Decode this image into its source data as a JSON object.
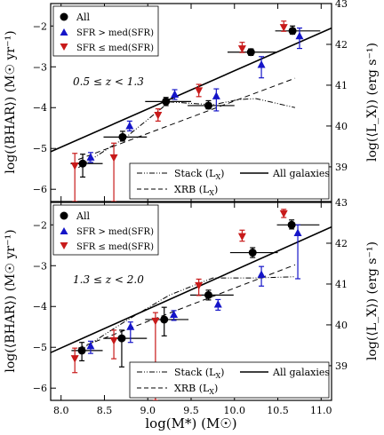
{
  "chart_data": [
    {
      "type": "scatter",
      "panel_label": "0.5 ≤ z < 1.3",
      "ylabel_left": "log(⟨BHAR⟩) (M☉ yr⁻¹)",
      "ylabel_right": "log(⟨L_X⟩) (erg s⁻¹)",
      "xlim": [
        7.88,
        11.12
      ],
      "ylim": [
        -6.3,
        -1.45
      ],
      "ylim_right": [
        38.15,
        43.0
      ],
      "yticks": [
        -6,
        -5,
        -4,
        -3,
        -2
      ],
      "yticks_right": [
        39,
        40,
        41,
        42,
        43
      ],
      "series": [
        {
          "name": "All",
          "color": "#000000",
          "marker": "circle",
          "points": [
            {
              "x": 8.26,
              "y": -5.37,
              "xerr": [
                0.15,
                0.22
              ],
              "yerr": [
                0.33,
                0.23
              ]
            },
            {
              "x": 8.72,
              "y": -4.72,
              "xerr": [
                0.23,
                0.27
              ],
              "yerr": [
                0.1,
                0.14
              ]
            },
            {
              "x": 9.22,
              "y": -3.85,
              "xerr": [
                0.25,
                0.28
              ],
              "yerr": [
                0.1,
                0.1
              ]
            },
            {
              "x": 9.71,
              "y": -3.95,
              "xerr": [
                0.25,
                0.29
              ],
              "yerr": [
                0.08,
                0.12
              ]
            },
            {
              "x": 10.2,
              "y": -2.64,
              "xerr": [
                0.28,
                0.28
              ],
              "yerr": [
                0.08,
                0.08
              ]
            },
            {
              "x": 10.68,
              "y": -2.12,
              "xerr": [
                0.21,
                0.31
              ],
              "yerr": [
                0.08,
                0.12
              ]
            }
          ]
        },
        {
          "name": "SFR > med(SFR)",
          "color": "#1515c8",
          "marker": "triangle-up",
          "points": [
            {
              "x": 8.31,
              "y": -5.22,
              "yerr": [
                0.12,
                0.12
              ]
            },
            {
              "x": 8.76,
              "y": -4.45,
              "yerr": [
                0.12,
                0.12
              ]
            },
            {
              "x": 9.28,
              "y": -3.68,
              "yerr": [
                0.12,
                0.12
              ]
            },
            {
              "x": 9.76,
              "y": -3.72,
              "yerr": [
                0.36,
                0.18
              ]
            },
            {
              "x": 10.28,
              "y": -2.95,
              "yerr": [
                0.32,
                0.2
              ]
            },
            {
              "x": 10.72,
              "y": -2.25,
              "yerr": [
                0.3,
                0.2
              ]
            }
          ]
        },
        {
          "name": "SFR ≤ med(SFR)",
          "color": "#c81a1a",
          "marker": "triangle-down",
          "points": [
            {
              "x": 8.21,
              "y": -5.42,
              "yerr": [
                0.88,
                0.3
              ]
            },
            {
              "x": 8.66,
              "y": -5.22,
              "yerr": [
                1.08,
                0.35
              ]
            },
            {
              "x": 9.17,
              "y": -4.18,
              "yerr": [
                0.15,
                0.15
              ]
            },
            {
              "x": 9.64,
              "y": -3.58,
              "yerr": [
                0.15,
                0.15
              ]
            },
            {
              "x": 10.14,
              "y": -2.55,
              "yerr": [
                0.1,
                0.15
              ]
            },
            {
              "x": 10.62,
              "y": -2.03,
              "yerr": [
                0.1,
                0.15
              ]
            }
          ]
        }
      ],
      "lines": [
        {
          "name": "Stack (L_X)",
          "style": "dash-dot",
          "x": [
            8.2,
            8.75,
            9.25,
            9.75,
            10.05,
            10.25,
            10.7
          ],
          "y": [
            -5.47,
            -4.72,
            -3.86,
            -3.93,
            -3.8,
            -3.78,
            -4.0
          ]
        },
        {
          "name": "XRB (L_X)",
          "style": "dashed",
          "x": [
            8.2,
            10.7
          ],
          "y": [
            -5.27,
            -3.28
          ]
        },
        {
          "name": "All galaxies",
          "style": "solid",
          "x": [
            7.88,
            11.12
          ],
          "y": [
            -5.08,
            -2.05
          ]
        }
      ]
    },
    {
      "type": "scatter",
      "panel_label": "1.3 ≤ z < 2.0",
      "ylabel_left": "log(⟨BHAR⟩) (M☉ yr⁻¹)",
      "ylabel_right": "log(⟨L_X⟩) (erg s⁻¹)",
      "xlabel": "log(M*) (M☉)",
      "xlim": [
        7.88,
        11.12
      ],
      "ylim": [
        -6.3,
        -1.45
      ],
      "ylim_right": [
        38.15,
        43.0
      ],
      "xticks": [
        8.0,
        8.5,
        9.0,
        9.5,
        10.0,
        10.5,
        11.0
      ],
      "yticks": [
        -6,
        -5,
        -4,
        -3,
        -2
      ],
      "yticks_right": [
        39,
        40,
        41,
        42,
        43
      ],
      "series": [
        {
          "name": "All",
          "color": "#000000",
          "marker": "circle",
          "points": [
            {
              "x": 8.25,
              "y": -5.08,
              "xerr": [
                0.13,
                0.23
              ],
              "yerr": [
                0.25,
                0.2
              ]
            },
            {
              "x": 8.71,
              "y": -4.78,
              "xerr": [
                0.22,
                0.28
              ],
              "yerr": [
                0.7,
                0.2
              ]
            },
            {
              "x": 9.2,
              "y": -4.32,
              "xerr": [
                0.23,
                0.27
              ],
              "yerr": [
                0.4,
                0.3
              ]
            },
            {
              "x": 9.71,
              "y": -3.72,
              "xerr": [
                0.22,
                0.28
              ],
              "yerr": [
                0.12,
                0.12
              ]
            },
            {
              "x": 10.22,
              "y": -2.68,
              "xerr": [
                0.27,
                0.28
              ],
              "yerr": [
                0.12,
                0.12
              ]
            },
            {
              "x": 10.67,
              "y": -2.0,
              "xerr": [
                0.18,
                0.31
              ],
              "yerr": [
                0.1,
                0.12
              ]
            }
          ]
        },
        {
          "name": "SFR > med(SFR)",
          "color": "#1515c8",
          "marker": "triangle-up",
          "points": [
            {
              "x": 8.31,
              "y": -4.97,
              "yerr": [
                0.18,
                0.12
              ]
            },
            {
              "x": 8.77,
              "y": -4.5,
              "yerr": [
                0.38,
                0.12
              ]
            },
            {
              "x": 9.27,
              "y": -4.2,
              "yerr": [
                0.14,
                0.1
              ]
            },
            {
              "x": 9.78,
              "y": -3.95,
              "yerr": [
                0.14,
                0.12
              ]
            },
            {
              "x": 10.28,
              "y": -3.22,
              "yerr": [
                0.28,
                0.2
              ]
            },
            {
              "x": 10.7,
              "y": -2.2,
              "yerr": [
                1.12,
                0.2
              ]
            }
          ]
        },
        {
          "name": "SFR ≤ med(SFR)",
          "color": "#c81a1a",
          "marker": "triangle-down",
          "points": [
            {
              "x": 8.21,
              "y": -5.27,
              "yerr": [
                0.35,
                0.25
              ]
            },
            {
              "x": 8.66,
              "y": -4.83,
              "yerr": [
                0.45,
                0.25
              ]
            },
            {
              "x": 9.14,
              "y": -4.35,
              "yerr": [
                1.95,
                0.2
              ]
            },
            {
              "x": 9.64,
              "y": -3.48,
              "yerr": [
                0.25,
                0.15
              ]
            },
            {
              "x": 10.14,
              "y": -2.28,
              "yerr": [
                0.12,
                0.15
              ]
            },
            {
              "x": 10.62,
              "y": -1.72,
              "yerr": [
                0.1,
                0.1
              ]
            }
          ]
        }
      ],
      "lines": [
        {
          "name": "Stack (L_X)",
          "style": "dash-dot",
          "x": [
            8.2,
            8.75,
            9.25,
            9.75,
            10.25,
            10.7
          ],
          "y": [
            -5.1,
            -4.35,
            -3.72,
            -3.3,
            -3.3,
            -3.27
          ]
        },
        {
          "name": "XRB (L_X)",
          "style": "dashed",
          "x": [
            8.2,
            10.7
          ],
          "y": [
            -5.02,
            -2.98
          ]
        },
        {
          "name": "All galaxies",
          "style": "solid",
          "x": [
            7.88,
            11.12
          ],
          "y": [
            -5.13,
            -2.05
          ]
        }
      ]
    }
  ],
  "legend_lines": {
    "stack": "Stack (L",
    "xrb": "XRB (L",
    "all_galaxies": "All galaxies",
    "x_sub": "X",
    "paren_close": ")"
  },
  "legend_markers": {
    "all": "All",
    "sfr_high": "SFR > med(SFR)",
    "sfr_low": "SFR ≤ med(SFR)"
  }
}
